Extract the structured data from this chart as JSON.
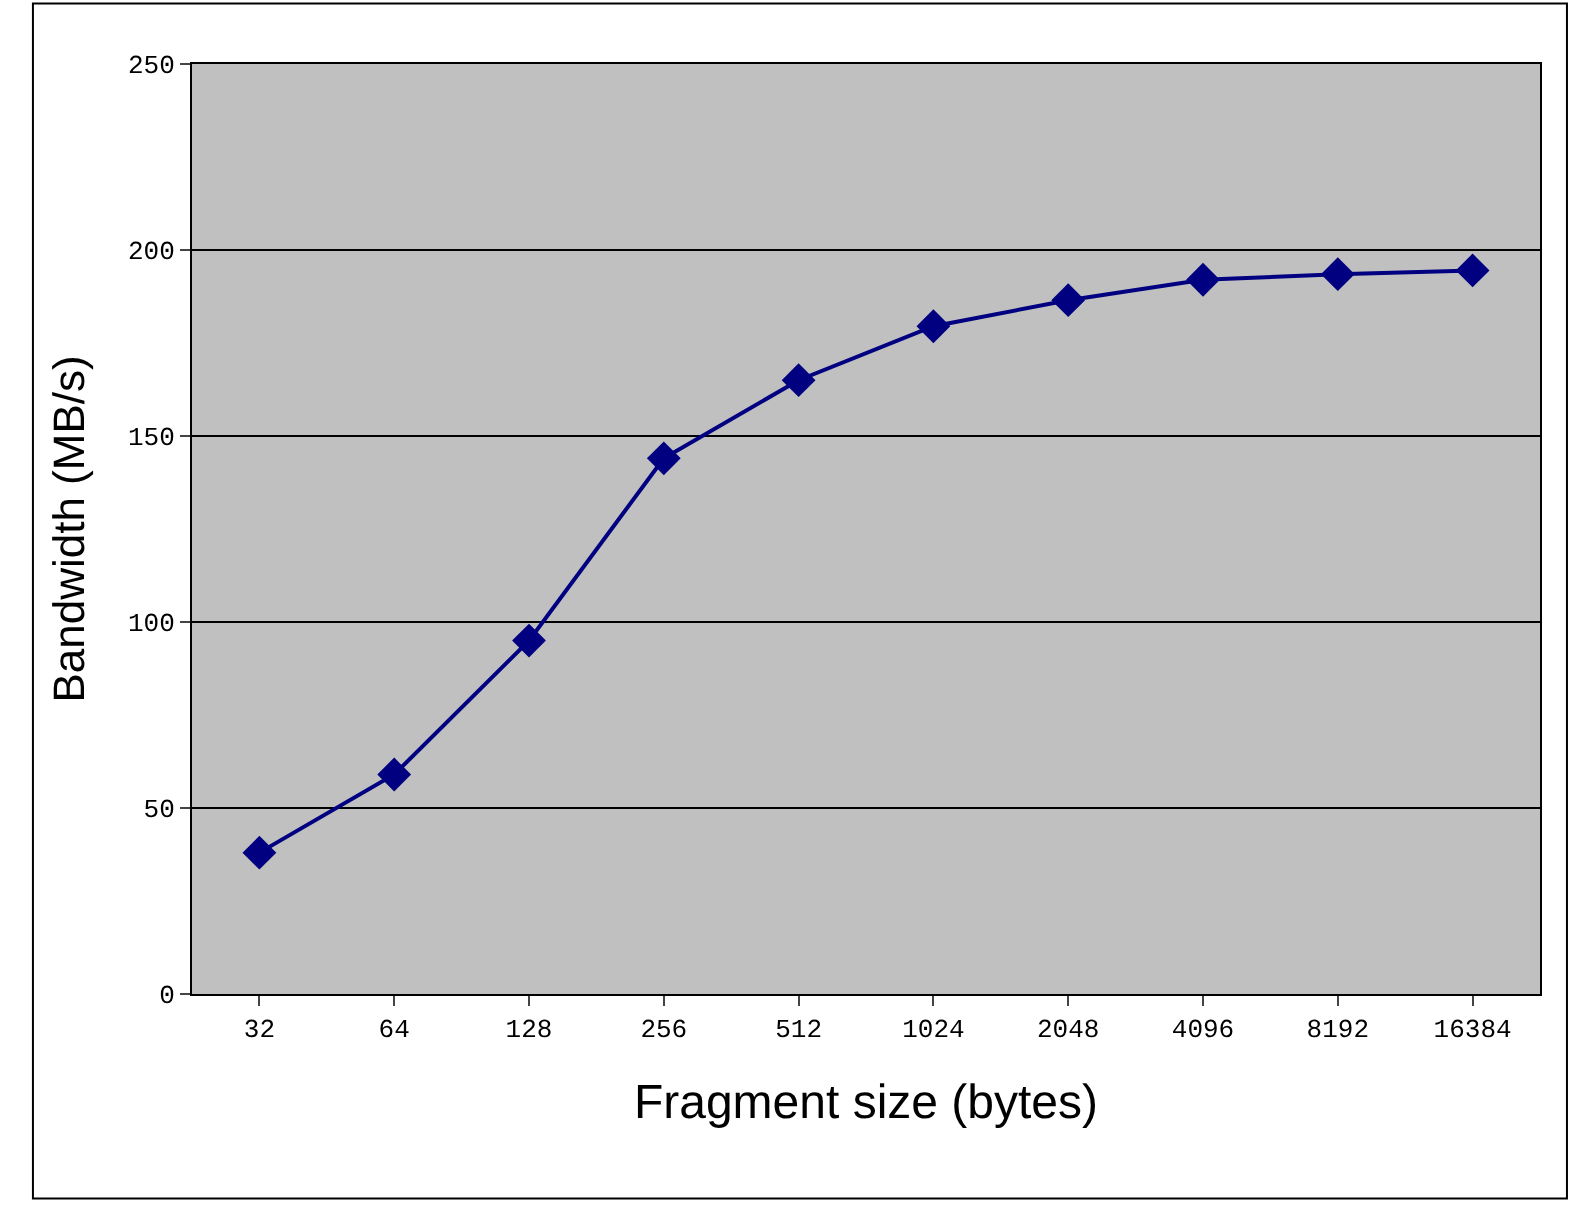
{
  "chart_data": {
    "type": "line",
    "xlabel": "Fragment size (bytes)",
    "ylabel": "Bandwidth (MB/s)",
    "categories": [
      "32",
      "64",
      "128",
      "256",
      "512",
      "1024",
      "2048",
      "4096",
      "8192",
      "16384"
    ],
    "series": [
      {
        "color": "#000080",
        "values": [
          38,
          59,
          95,
          144,
          165,
          179.5,
          186.5,
          192,
          193.5,
          194.5
        ]
      }
    ],
    "ylim": [
      0,
      250
    ],
    "yticks": [
      0,
      50,
      100,
      150,
      200,
      250
    ],
    "grid": "y",
    "marker": "diamond",
    "line_style": "solid",
    "legend": false
  }
}
